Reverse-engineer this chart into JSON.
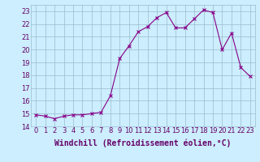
{
  "x": [
    0,
    1,
    2,
    3,
    4,
    5,
    6,
    7,
    8,
    9,
    10,
    11,
    12,
    13,
    14,
    15,
    16,
    17,
    18,
    19,
    20,
    21,
    22,
    23
  ],
  "y": [
    14.9,
    14.8,
    14.6,
    14.8,
    14.9,
    14.9,
    15.0,
    15.1,
    16.4,
    19.3,
    20.3,
    21.4,
    21.8,
    22.5,
    22.9,
    21.7,
    21.7,
    22.4,
    23.1,
    22.9,
    20.0,
    21.3,
    18.6,
    17.9
  ],
  "line_color": "#880088",
  "marker": "x",
  "bg_color": "#cceeff",
  "grid_color": "#99bbcc",
  "xlabel": "Windchill (Refroidissement éolien,°C)",
  "xlabel_fontsize": 7,
  "tick_fontsize": 6,
  "ylim": [
    14,
    23.5
  ],
  "xlim": [
    -0.5,
    23.5
  ],
  "yticks": [
    14,
    15,
    16,
    17,
    18,
    19,
    20,
    21,
    22,
    23
  ],
  "xticks": [
    0,
    1,
    2,
    3,
    4,
    5,
    6,
    7,
    8,
    9,
    10,
    11,
    12,
    13,
    14,
    15,
    16,
    17,
    18,
    19,
    20,
    21,
    22,
    23
  ]
}
